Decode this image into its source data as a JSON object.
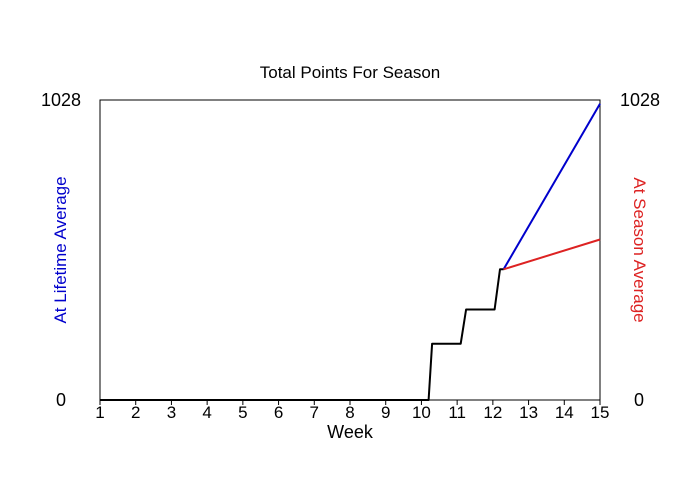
{
  "chart_data": {
    "type": "line",
    "title": "Total Points For Season",
    "xlabel": "Week",
    "ylabel_left": "At Lifetime Average",
    "ylabel_right": "At Season Average",
    "xlim": [
      1,
      15
    ],
    "ylim": [
      0,
      1028
    ],
    "x_ticks": [
      "1",
      "2",
      "3",
      "4",
      "5",
      "6",
      "7",
      "8",
      "9",
      "10",
      "11",
      "12",
      "13",
      "14",
      "15"
    ],
    "y_tick_labels": {
      "min": "0",
      "max": "1028"
    },
    "grid": false,
    "colors": {
      "actual": "#000000",
      "lifetime_projection": "#0000cc",
      "season_projection": "#dd2222"
    },
    "series": [
      {
        "color": "#000000",
        "points": [
          [
            1,
            0
          ],
          [
            10.05,
            0
          ],
          [
            10.2,
            0
          ],
          [
            10.3,
            193
          ],
          [
            11.1,
            193
          ],
          [
            11.25,
            310
          ],
          [
            12.05,
            310
          ],
          [
            12.2,
            448
          ],
          [
            12.3,
            448
          ]
        ]
      },
      {
        "color": "#0000cc",
        "points": [
          [
            12.3,
            448
          ],
          [
            15,
            1015
          ]
        ]
      },
      {
        "color": "#dd2222",
        "points": [
          [
            12.3,
            448
          ],
          [
            15,
            550
          ]
        ]
      }
    ]
  }
}
